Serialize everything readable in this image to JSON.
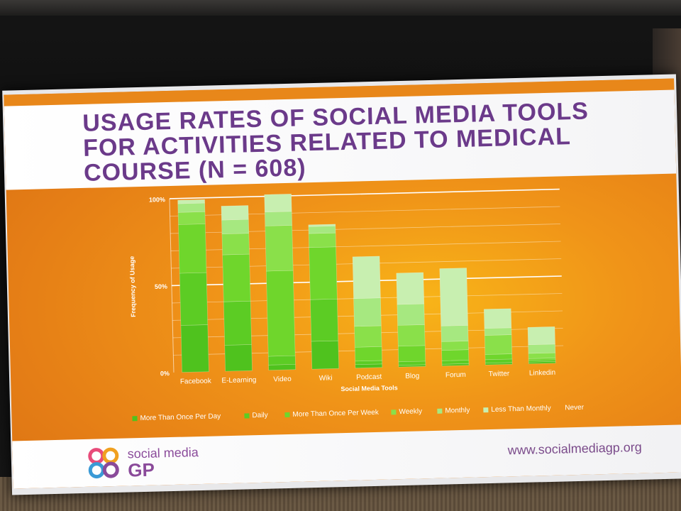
{
  "slide": {
    "title_lines": [
      "USAGE RATES OF SOCIAL MEDIA TOOLS",
      "FOR ACTIVITIES RELATED TO MEDICAL",
      "COURSE (N = 608)"
    ],
    "footer_url": "www.socialmediagp.org",
    "logo_line_1": "social media",
    "logo_line_2": "GP"
  },
  "chart_data": {
    "type": "bar",
    "stacked": true,
    "xlabel": "Social Media Tools",
    "ylabel": "Frequency of Usage",
    "ylim": [
      0,
      100
    ],
    "yticks": [
      "0%",
      "50%",
      "100%"
    ],
    "grid": true,
    "legend_placement": "bottom",
    "categories": [
      "Facebook",
      "E-Learning",
      "Video",
      "Wiki",
      "Podcast",
      "Blog",
      "Forum",
      "Twitter",
      "LinkedIn"
    ],
    "category_labels": [
      "Facebook",
      "E-Learning",
      "Video",
      "Wiki",
      "Podcast",
      "Blog",
      "Forum",
      "Twitter",
      "Linkedin"
    ],
    "series": [
      {
        "name": "More Than Once Per Day",
        "color": "#4fc21e",
        "values": [
          27,
          15,
          3,
          16,
          2,
          1,
          1,
          1,
          1
        ]
      },
      {
        "name": "Daily",
        "color": "#5ccc24",
        "values": [
          30,
          25,
          5,
          24,
          2,
          2,
          2,
          2,
          1
        ]
      },
      {
        "name": "More Than Once Per Week",
        "color": "#6fd62c",
        "values": [
          28,
          27,
          49,
          30,
          8,
          9,
          6,
          3,
          1
        ]
      },
      {
        "name": "Weekly",
        "color": "#8ae04a",
        "values": [
          7,
          12,
          26,
          8,
          12,
          12,
          5,
          11,
          3
        ]
      },
      {
        "name": "Monthly",
        "color": "#a6e880",
        "values": [
          5,
          8,
          8,
          4,
          16,
          12,
          9,
          4,
          5
        ]
      },
      {
        "name": "Less Than Monthly",
        "color": "#c8efb0",
        "values": [
          2,
          8,
          10,
          1,
          24,
          18,
          33,
          11,
          10
        ]
      },
      {
        "name": "Never",
        "color": "#ffffff",
        "values": [
          0,
          0,
          0,
          0,
          0,
          0,
          0,
          0,
          0
        ]
      }
    ]
  }
}
